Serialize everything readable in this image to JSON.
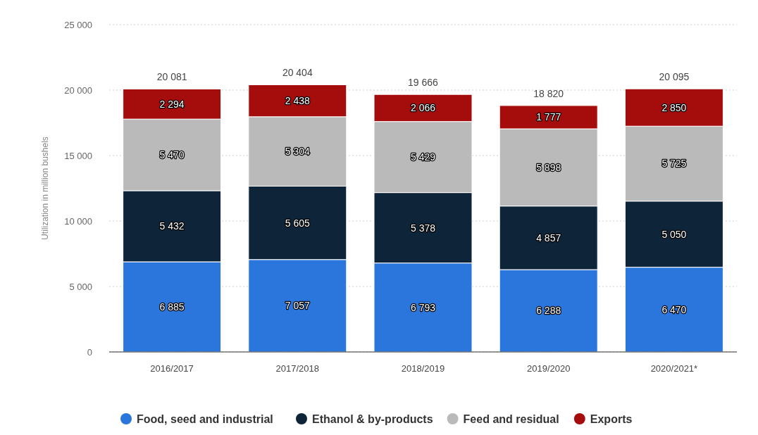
{
  "chart_data": {
    "type": "bar",
    "ylabel": "Utilization in million bushels",
    "categories": [
      "2016/2017",
      "2017/2018",
      "2018/2019",
      "2019/2020",
      "2020/2021*"
    ],
    "stacked": true,
    "series": [
      {
        "name": "Food, seed and industrial",
        "color": "#2a76dd",
        "values": [
          6885,
          7057,
          6793,
          6288,
          6470
        ],
        "value_labels": [
          "6 885",
          "7 057",
          "6 793",
          "6 288",
          "6 470"
        ]
      },
      {
        "name": "Ethanol & by-products",
        "color": "#0e2439",
        "values": [
          5432,
          5605,
          5378,
          4857,
          5050
        ],
        "value_labels": [
          "5 432",
          "5 605",
          "5 378",
          "4 857",
          "5 050"
        ]
      },
      {
        "name": "Feed and residual",
        "color": "#bababa",
        "values": [
          5470,
          5304,
          5429,
          5898,
          5725
        ],
        "value_labels": [
          "5 470",
          "5 304",
          "5 429",
          "5 898",
          "5 725"
        ]
      },
      {
        "name": "Exports",
        "color": "#a50d0d",
        "values": [
          2294,
          2438,
          2066,
          1777,
          2850
        ],
        "value_labels": [
          "2 294",
          "2 438",
          "2 066",
          "1 777",
          "2 850"
        ]
      }
    ],
    "totals": [
      "20 081",
      "20 404",
      "19 666",
      "18 820",
      "20 095"
    ],
    "ylim": [
      0,
      25000
    ],
    "yticks": [
      {
        "value": 0,
        "label": "0"
      },
      {
        "value": 5000,
        "label": "5 000"
      },
      {
        "value": 10000,
        "label": "10 000"
      },
      {
        "value": 15000,
        "label": "15 000"
      },
      {
        "value": 20000,
        "label": "20 000"
      },
      {
        "value": 25000,
        "label": "25 000"
      }
    ],
    "grid": "y",
    "legend": "bottom"
  }
}
